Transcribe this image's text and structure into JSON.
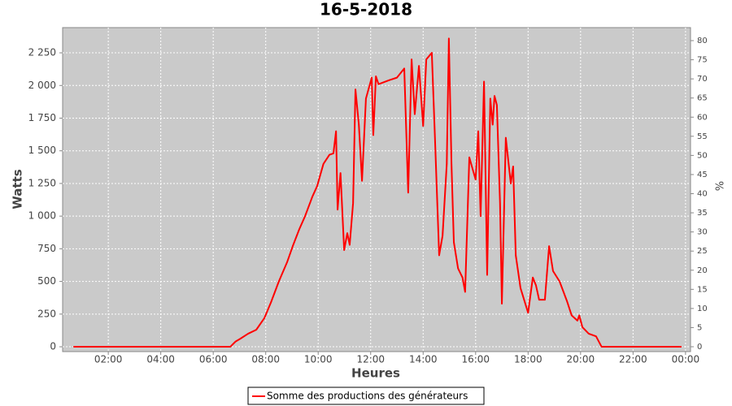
{
  "chart_data": {
    "type": "line",
    "title": "16-5-2018",
    "x_label": "Heures",
    "y_label": "Watts",
    "y2_label": "%",
    "x": [
      0.67,
      6.65,
      6.85,
      7.02,
      7.33,
      7.64,
      7.95,
      8.2,
      8.5,
      8.82,
      9.03,
      9.28,
      9.5,
      9.78,
      9.96,
      10.2,
      10.43,
      10.58,
      10.68,
      10.74,
      10.85,
      10.99,
      11.11,
      11.2,
      11.33,
      11.42,
      11.55,
      11.67,
      11.82,
      12.04,
      12.1,
      12.2,
      12.3,
      12.7,
      13.0,
      13.28,
      13.43,
      13.56,
      13.68,
      13.84,
      14.0,
      14.12,
      14.33,
      14.45,
      14.61,
      14.74,
      14.9,
      14.98,
      15.08,
      15.17,
      15.33,
      15.5,
      15.6,
      15.76,
      15.9,
      16.0,
      16.1,
      16.19,
      16.32,
      16.44,
      16.56,
      16.65,
      16.72,
      16.81,
      16.93,
      17.0,
      17.15,
      17.34,
      17.43,
      17.53,
      17.71,
      18.0,
      18.18,
      18.3,
      18.42,
      18.64,
      18.8,
      18.95,
      19.2,
      19.48,
      19.66,
      19.88,
      19.95,
      20.07,
      20.31,
      20.59,
      20.8,
      23.85
    ],
    "series": [
      {
        "name": "Somme des productions des  générateurs",
        "color": "#ff0000",
        "values": [
          0,
          0,
          40,
          60,
          100,
          130,
          220,
          340,
          500,
          650,
          770,
          900,
          1000,
          1150,
          1230,
          1400,
          1470,
          1480,
          1650,
          1050,
          1330,
          740,
          870,
          780,
          1100,
          1970,
          1700,
          1270,
          1900,
          2060,
          1620,
          2070,
          2010,
          2040,
          2060,
          2130,
          1180,
          2200,
          1780,
          2150,
          1690,
          2200,
          2250,
          1600,
          700,
          850,
          1400,
          2360,
          1400,
          800,
          600,
          530,
          420,
          1450,
          1350,
          1280,
          1650,
          1000,
          2030,
          550,
          1900,
          1700,
          1920,
          1850,
          1100,
          330,
          1600,
          1250,
          1380,
          700,
          450,
          260,
          530,
          470,
          360,
          360,
          770,
          580,
          500,
          350,
          240,
          200,
          240,
          150,
          100,
          80,
          0,
          0
        ]
      }
    ],
    "xlim": [
      0.26,
      24.19
    ],
    "ylim": [
      -37,
      2443
    ],
    "y2lim": [
      -1.27,
      83.4
    ],
    "xticks": [
      {
        "value": 2,
        "label": "02:00"
      },
      {
        "value": 4,
        "label": "04:00"
      },
      {
        "value": 6,
        "label": "06:00"
      },
      {
        "value": 8,
        "label": "08:00"
      },
      {
        "value": 10,
        "label": "10:00"
      },
      {
        "value": 12,
        "label": "12:00"
      },
      {
        "value": 14,
        "label": "14:00"
      },
      {
        "value": 16,
        "label": "16:00"
      },
      {
        "value": 18,
        "label": "18:00"
      },
      {
        "value": 20,
        "label": "20:00"
      },
      {
        "value": 22,
        "label": "22:00"
      },
      {
        "value": 24,
        "label": "00:00"
      }
    ],
    "yticks": [
      0,
      250,
      500,
      750,
      {
        "value": 1000,
        "label": "1 000"
      },
      {
        "value": 1250,
        "label": "1 250"
      },
      {
        "value": 1500,
        "label": "1 500"
      },
      {
        "value": 1750,
        "label": "1 750"
      },
      {
        "value": 2000,
        "label": "2 000"
      },
      {
        "value": 2250,
        "label": "2 250"
      }
    ],
    "y2ticks": [
      0,
      5,
      10,
      15,
      20,
      25,
      30,
      35,
      40,
      45,
      50,
      55,
      60,
      65,
      70,
      75,
      80
    ],
    "grid": true,
    "legend": "bottom"
  }
}
